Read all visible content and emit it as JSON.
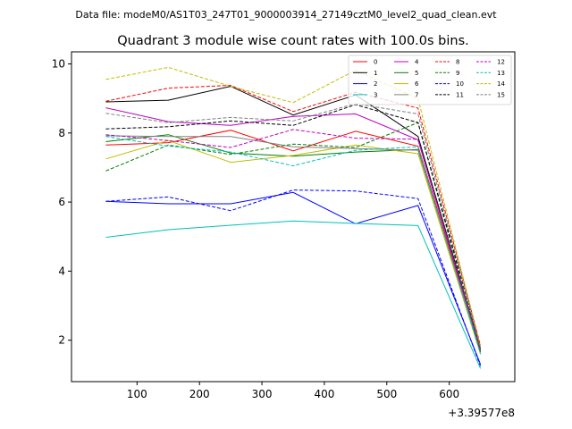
{
  "figure": {
    "suptitle": "Data file: modeM0/AS1T03_247T01_9000003914_27149cztM0_level2_quad_clean.evt"
  },
  "chart_data": {
    "type": "line",
    "title": "Quadrant 3 module wise count rates with 100.0s bins.",
    "xlabel": "",
    "ylabel": "",
    "x_offset_label": "+3.39577e8",
    "x": [
      50,
      150,
      250,
      350,
      450,
      550,
      650
    ],
    "xlim": [
      -5,
      705
    ],
    "ylim": [
      0.8,
      10.35
    ],
    "xticks": [
      100,
      200,
      300,
      400,
      500,
      600
    ],
    "yticks": [
      2,
      4,
      6,
      8,
      10
    ],
    "legend_position": "top-right",
    "series": [
      {
        "name": "0",
        "color": "#ff0000",
        "dashed": false,
        "values": [
          7.65,
          7.72,
          8.08,
          7.48,
          8.05,
          7.62,
          1.72
        ]
      },
      {
        "name": "1",
        "color": "#000000",
        "dashed": false,
        "values": [
          8.9,
          8.95,
          9.35,
          8.52,
          9.1,
          7.9,
          1.75
        ]
      },
      {
        "name": "2",
        "color": "#0000ff",
        "dashed": false,
        "values": [
          6.02,
          5.95,
          5.95,
          6.28,
          5.37,
          5.9,
          1.3
        ]
      },
      {
        "name": "3",
        "color": "#00bfbf",
        "dashed": false,
        "values": [
          4.98,
          5.2,
          5.33,
          5.45,
          5.38,
          5.32,
          1.18
        ]
      },
      {
        "name": "4",
        "color": "#bf00bf",
        "dashed": false,
        "values": [
          8.73,
          8.33,
          8.22,
          8.48,
          8.55,
          7.8,
          1.7
        ]
      },
      {
        "name": "5",
        "color": "#008000",
        "dashed": false,
        "values": [
          7.75,
          7.95,
          7.42,
          7.33,
          7.45,
          7.52,
          1.65
        ]
      },
      {
        "name": "6",
        "color": "#bfbf00",
        "dashed": false,
        "values": [
          7.25,
          7.78,
          7.15,
          7.35,
          7.65,
          7.4,
          1.6
        ]
      },
      {
        "name": "7",
        "color": "#808080",
        "dashed": false,
        "values": [
          7.92,
          7.9,
          7.9,
          7.6,
          7.55,
          7.5,
          1.68
        ]
      },
      {
        "name": "8",
        "color": "#ff0000",
        "dashed": true,
        "values": [
          8.92,
          9.3,
          9.38,
          8.62,
          9.18,
          8.72,
          1.85
        ]
      },
      {
        "name": "9",
        "color": "#008000",
        "dashed": true,
        "values": [
          6.9,
          7.65,
          7.38,
          7.68,
          7.58,
          8.3,
          1.65
        ]
      },
      {
        "name": "10",
        "color": "#0000ff",
        "dashed": true,
        "values": [
          6.02,
          6.15,
          5.75,
          6.35,
          6.32,
          6.1,
          1.25
        ]
      },
      {
        "name": "11",
        "color": "#000000",
        "dashed": true,
        "values": [
          8.12,
          8.18,
          8.35,
          8.22,
          8.82,
          8.3,
          1.8
        ]
      },
      {
        "name": "12",
        "color": "#bf00bf",
        "dashed": true,
        "values": [
          7.95,
          7.78,
          7.58,
          8.1,
          7.85,
          7.82,
          1.72
        ]
      },
      {
        "name": "13",
        "color": "#00bfbf",
        "dashed": true,
        "values": [
          7.9,
          7.62,
          7.45,
          7.05,
          7.5,
          7.6,
          1.6
        ]
      },
      {
        "name": "14",
        "color": "#bfbf00",
        "dashed": true,
        "values": [
          9.55,
          9.9,
          9.35,
          8.88,
          9.82,
          9.0,
          1.82
        ]
      },
      {
        "name": "15",
        "color": "#808080",
        "dashed": true,
        "values": [
          8.57,
          8.3,
          8.45,
          8.35,
          8.85,
          8.55,
          1.78
        ]
      }
    ]
  }
}
